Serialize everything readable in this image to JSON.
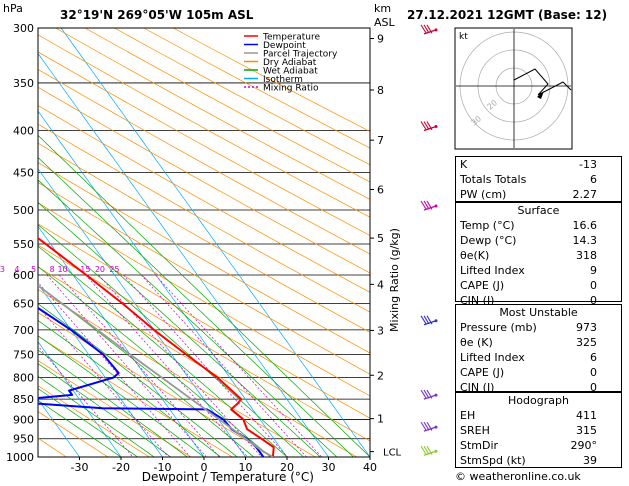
{
  "header": {
    "hpa_label": "hPa",
    "location": "32°19'N  269°05'W  105m  ASL",
    "km_label": "km",
    "asl_label": "ASL",
    "datetime": "27.12.2021  12GMT  (Base: 12)"
  },
  "legend": [
    {
      "label": "Temperature",
      "color": "#ff0000",
      "dash": ""
    },
    {
      "label": "Dewpoint",
      "color": "#0000ff",
      "dash": ""
    },
    {
      "label": "Parcel Trajectory",
      "color": "#999999",
      "dash": ""
    },
    {
      "label": "Dry Adiabat",
      "color": "#ff8c00",
      "dash": ""
    },
    {
      "label": "Wet Adiabat",
      "color": "#00aa00",
      "dash": ""
    },
    {
      "label": "Isotherm",
      "color": "#00aaff",
      "dash": ""
    },
    {
      "label": "Mixing Ratio",
      "color": "#cc00cc",
      "dash": "2,2"
    }
  ],
  "chart_data": {
    "type": "line",
    "xlabel": "Dewpoint / Temperature (°C)",
    "ylabel_right": "Mixing Ratio (g/kg)",
    "x_ticks": [
      -30,
      -20,
      -10,
      0,
      10,
      20,
      30,
      40
    ],
    "pressure_levels": [
      300,
      350,
      400,
      450,
      500,
      550,
      600,
      650,
      700,
      750,
      800,
      850,
      900,
      950,
      1000
    ],
    "km_ticks": [
      {
        "label": "9",
        "p": 309
      },
      {
        "label": "8",
        "p": 357
      },
      {
        "label": "7",
        "p": 411
      },
      {
        "label": "6",
        "p": 472
      },
      {
        "label": "5",
        "p": 541
      },
      {
        "label": "4",
        "p": 616
      },
      {
        "label": "3",
        "p": 701
      },
      {
        "label": "2",
        "p": 795
      },
      {
        "label": "1",
        "p": 898
      }
    ],
    "lcl_label": "LCL",
    "lcl_p": 985,
    "mixing_ratio_labels": [
      {
        "label": "1",
        "t": -31
      },
      {
        "label": "2",
        "t": -22
      },
      {
        "label": "3",
        "t": -17
      },
      {
        "label": "4",
        "t": -13.5
      },
      {
        "label": "5",
        "t": -9.5
      },
      {
        "label": "8",
        "t": -5
      },
      {
        "label": "10",
        "t": -2.5
      },
      {
        "label": "15",
        "t": 3
      },
      {
        "label": "20",
        "t": 6.5
      },
      {
        "label": "25",
        "t": 10
      }
    ],
    "series": [
      {
        "name": "Temperature",
        "color": "#ff0000",
        "points": [
          [
            1000,
            16.6
          ],
          [
            973,
            18.5
          ],
          [
            950,
            17.0
          ],
          [
            925,
            15.2
          ],
          [
            900,
            16.0
          ],
          [
            875,
            14.8
          ],
          [
            860,
            17.5
          ],
          [
            850,
            19.0
          ],
          [
            800,
            17.0
          ],
          [
            750,
            13.5
          ],
          [
            700,
            10.0
          ],
          [
            650,
            7.0
          ],
          [
            600,
            3.2
          ],
          [
            550,
            -1.2
          ],
          [
            500,
            -6.0
          ],
          [
            450,
            -13.0
          ],
          [
            400,
            -21.0
          ],
          [
            350,
            -30.0
          ],
          [
            300,
            -40.0
          ]
        ]
      },
      {
        "name": "Dewpoint",
        "color": "#0000ff",
        "points": [
          [
            1000,
            14.3
          ],
          [
            973,
            14.3
          ],
          [
            950,
            13.5
          ],
          [
            925,
            11.5
          ],
          [
            900,
            11.2
          ],
          [
            875,
            9.0
          ],
          [
            872,
            -16.0
          ],
          [
            860,
            -32.0
          ],
          [
            850,
            -33.0
          ],
          [
            840,
            -21.0
          ],
          [
            830,
            -21.0
          ],
          [
            800,
            -8.0
          ],
          [
            790,
            -6.0
          ],
          [
            750,
            -6.5
          ],
          [
            700,
            -10.0
          ],
          [
            650,
            -15.0
          ],
          [
            640,
            -19.0
          ],
          [
            630,
            -24.0
          ],
          [
            610,
            -28.0
          ],
          [
            600,
            -29.0
          ],
          [
            550,
            -33.0
          ],
          [
            500,
            -47.0
          ],
          [
            450,
            -48.0
          ],
          [
            400,
            -53.0
          ],
          [
            350,
            -57.0
          ],
          [
            330,
            -63.0
          ],
          [
            310,
            -55.0
          ],
          [
            300,
            -59.0
          ]
        ]
      },
      {
        "name": "Parcel Trajectory",
        "color": "#999999",
        "points": [
          [
            1000,
            16.6
          ],
          [
            985,
            15.2
          ],
          [
            950,
            13.2
          ],
          [
            900,
            10.2
          ],
          [
            850,
            7.0
          ],
          [
            800,
            3.6
          ],
          [
            750,
            0.0
          ],
          [
            700,
            -3.6
          ],
          [
            650,
            -7.6
          ],
          [
            600,
            -11.8
          ],
          [
            550,
            -16.5
          ],
          [
            500,
            -21.8
          ],
          [
            450,
            -27.8
          ],
          [
            400,
            -34.8
          ],
          [
            350,
            -42.8
          ],
          [
            300,
            -52.0
          ]
        ]
      }
    ]
  },
  "hodograph": {
    "label": "kt",
    "ring_labels": [
      "20",
      "30"
    ]
  },
  "indices": [
    {
      "label": "K",
      "value": "-13"
    },
    {
      "label": "Totals Totals",
      "value": "6"
    },
    {
      "label": "PW (cm)",
      "value": "2.27"
    }
  ],
  "surface": {
    "title": "Surface",
    "rows": [
      {
        "label": "Temp (°C)",
        "value": "16.6"
      },
      {
        "label": "Dewp (°C)",
        "value": "14.3"
      },
      {
        "label": "θe(K)",
        "value": "318"
      },
      {
        "label": "Lifted Index",
        "value": "9"
      },
      {
        "label": "CAPE (J)",
        "value": "0"
      },
      {
        "label": "CIN (J)",
        "value": "0"
      }
    ]
  },
  "most_unstable": {
    "title": "Most Unstable",
    "rows": [
      {
        "label": "Pressure (mb)",
        "value": "973"
      },
      {
        "label": "θe (K)",
        "value": "325"
      },
      {
        "label": "Lifted Index",
        "value": "6"
      },
      {
        "label": "CAPE (J)",
        "value": "0"
      },
      {
        "label": "CIN (J)",
        "value": "0"
      }
    ]
  },
  "hodograph_params": {
    "title": "Hodograph",
    "rows": [
      {
        "label": "EH",
        "value": "411"
      },
      {
        "label": "SREH",
        "value": "315"
      },
      {
        "label": "StmDir",
        "value": "290°"
      },
      {
        "label": "StmSpd (kt)",
        "value": "39"
      }
    ]
  },
  "footer": {
    "copyright": "© weatheronline.co.uk"
  }
}
